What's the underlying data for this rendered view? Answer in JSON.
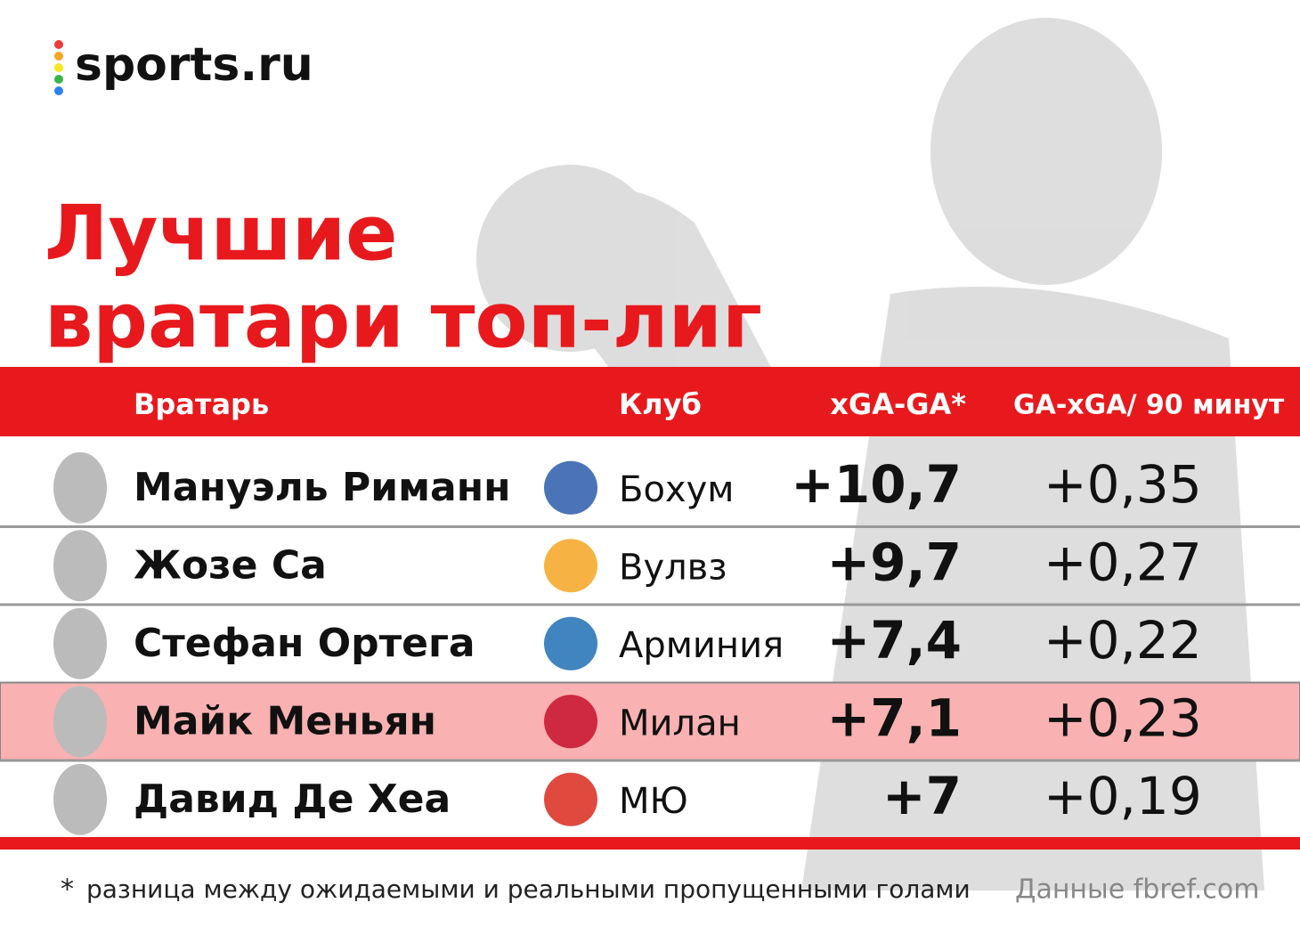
{
  "logo": "sports.ru",
  "title": {
    "line1": "Лучшие",
    "line2": "вратари топ-лиг"
  },
  "table": {
    "headers": [
      "Вратарь",
      "Клуб",
      "xGA-GA*",
      "GA-xGA/ 90 минут"
    ],
    "rows": [
      [
        "Мануэль Риманн",
        "Бохум",
        "+10,7",
        "+0,35"
      ],
      [
        "Жозе Са",
        "Вулвз",
        "+9,7",
        "+0,27"
      ],
      [
        "Стефан Ортега",
        "Арминия",
        "+7,4",
        "+0,22"
      ],
      [
        "Майк Меньян",
        "Милан",
        "+7,1",
        "+0,23"
      ],
      [
        "Давид Де Хеа",
        "МЮ",
        "+7",
        "+0,19"
      ]
    ]
  },
  "footnote": {
    "mark": "*",
    "text": "разница между ожидаемыми и реальными пропущенными голами"
  },
  "source": "Данные fbref.com"
}
